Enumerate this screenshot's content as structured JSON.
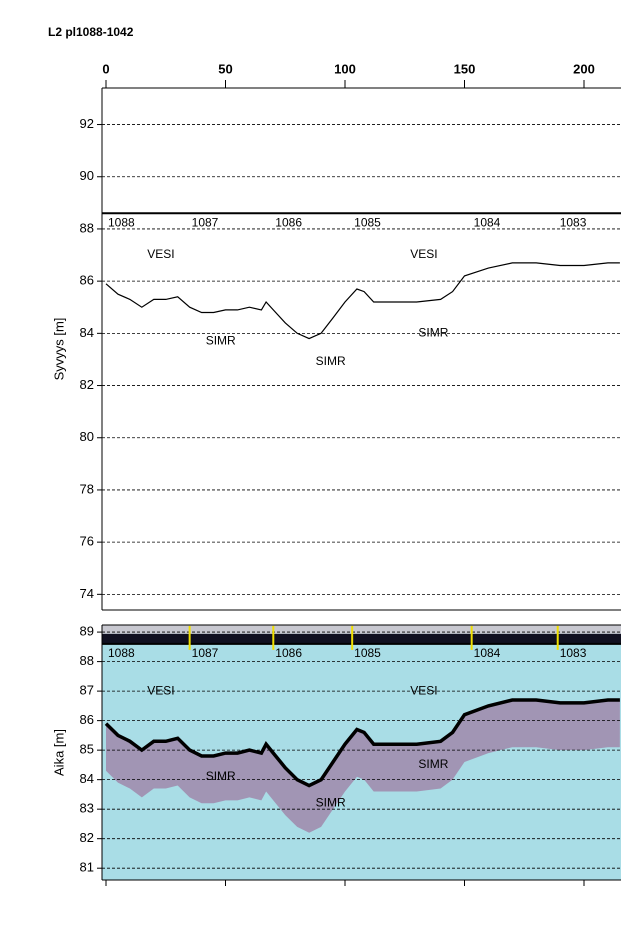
{
  "chart_data": [
    {
      "type": "line",
      "title": "L2 pl1088-1042",
      "y_label": "Syvyys [m]",
      "xlim": [
        0,
        215
      ],
      "xticks": [
        0,
        50,
        100,
        150,
        200
      ],
      "ylim": [
        73.4,
        93.4
      ],
      "yticks": [
        74,
        76,
        78,
        80,
        82,
        84,
        86,
        88,
        90,
        92
      ],
      "grid": true,
      "water_level": 88.6,
      "stations": {
        "labels": [
          "1088",
          "1087",
          "1086",
          "1085",
          "1084",
          "1083"
        ],
        "x": [
          0,
          35,
          70,
          103,
          153,
          189
        ]
      },
      "x": [
        0,
        5,
        10,
        15,
        20,
        25,
        30,
        35,
        40,
        45,
        50,
        55,
        60,
        65,
        67,
        70,
        75,
        80,
        85,
        90,
        95,
        100,
        105,
        108,
        112,
        120,
        130,
        140,
        145,
        150,
        160,
        170,
        180,
        190,
        200,
        210,
        215
      ],
      "series": [
        {
          "color": "#000000",
          "values": [
            85.9,
            85.5,
            85.3,
            85.0,
            85.3,
            85.3,
            85.4,
            85.0,
            84.8,
            84.8,
            84.9,
            84.9,
            85.0,
            84.9,
            85.2,
            84.9,
            84.4,
            84.0,
            83.8,
            84.0,
            84.6,
            85.2,
            85.7,
            85.6,
            85.2,
            85.2,
            85.2,
            85.3,
            85.6,
            86.2,
            86.5,
            86.7,
            86.7,
            86.6,
            86.6,
            86.7,
            86.7
          ]
        }
      ],
      "annotations": [
        {
          "text": "VESI",
          "x": 23,
          "y": 87.0
        },
        {
          "text": "VESI",
          "x": 133,
          "y": 87.0
        },
        {
          "text": "SIMR",
          "x": 48,
          "y": 83.7
        },
        {
          "text": "SIMR",
          "x": 94,
          "y": 82.9
        },
        {
          "text": "SIMR",
          "x": 137,
          "y": 84.0
        }
      ]
    },
    {
      "type": "radargram",
      "y_label": "Aika [m]",
      "ylim": [
        80.6,
        89.24
      ],
      "yticks": [
        81,
        82,
        83,
        84,
        85,
        86,
        87,
        88,
        89
      ],
      "grid": true,
      "background": "#a9dde6",
      "annotations": [
        {
          "text": "VESI",
          "x": 23,
          "y": 87.0
        },
        {
          "text": "VESI",
          "x": 133,
          "y": 87.0
        },
        {
          "text": "SIMR",
          "x": 48,
          "y": 84.1
        },
        {
          "text": "SIMR",
          "x": 94,
          "y": 83.2
        },
        {
          "text": "SIMR",
          "x": 137,
          "y": 84.5
        }
      ]
    }
  ]
}
